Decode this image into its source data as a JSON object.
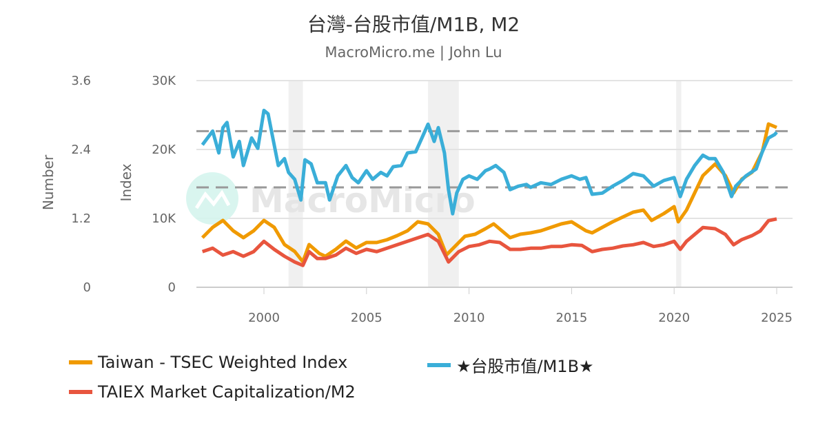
{
  "title": "台灣-台股市值/M1B, M2",
  "subtitle": "MacroMicro.me | John Lu",
  "watermark": "MacroMicro",
  "chart_data": {
    "type": "line",
    "title": "台灣-台股市值/M1B, M2",
    "left_axis_number": {
      "label": "Number",
      "ticks": [
        "0",
        "1.2",
        "2.4",
        "3.6"
      ],
      "range": [
        0,
        3.6
      ]
    },
    "left_axis_index": {
      "label": "Index",
      "ticks": [
        "0",
        "10K",
        "20K",
        "30K"
      ],
      "range": [
        0,
        30000
      ]
    },
    "x_axis": {
      "ticks": [
        "2000",
        "2005",
        "2010",
        "2015",
        "2020",
        "2025"
      ],
      "range": [
        1996.8,
        2025.5
      ]
    },
    "grid": true,
    "legend_position": "bottom",
    "reference_lines_number": [
      2.72,
      1.74
    ],
    "recession_bands": [
      [
        2001.2,
        2001.9
      ],
      [
        2008.0,
        2009.5
      ],
      [
        2020.1,
        2020.35
      ]
    ],
    "series": [
      {
        "name": "Taiwan - TSEC Weighted Index",
        "axis": "index",
        "color": "#f09a00",
        "x": [
          1997,
          1997.5,
          1998,
          1998.5,
          1999,
          1999.5,
          2000,
          2000.5,
          2001,
          2001.5,
          2001.9,
          2002.2,
          2002.7,
          2003,
          2003.5,
          2004,
          2004.5,
          2005,
          2005.5,
          2006,
          2006.5,
          2007,
          2007.5,
          2008,
          2008.5,
          2008.9,
          2009.3,
          2009.8,
          2010.3,
          2010.8,
          2011.2,
          2011.6,
          2012,
          2012.5,
          2013,
          2013.5,
          2014,
          2014.5,
          2015,
          2015.7,
          2016,
          2016.5,
          2017,
          2017.5,
          2018,
          2018.5,
          2018.9,
          2019.5,
          2020,
          2020.2,
          2020.6,
          2021,
          2021.4,
          2022,
          2022.5,
          2022.9,
          2023.3,
          2023.8,
          2024.3,
          2024.6,
          2025
        ],
        "y": [
          7200,
          8700,
          9700,
          8200,
          7200,
          8200,
          9700,
          8700,
          6200,
          5200,
          3700,
          6200,
          4900,
          4500,
          5500,
          6700,
          5700,
          6500,
          6500,
          6900,
          7500,
          8200,
          9500,
          9200,
          7700,
          4700,
          5900,
          7400,
          7700,
          8500,
          9200,
          8200,
          7200,
          7700,
          7900,
          8200,
          8700,
          9200,
          9500,
          8200,
          7900,
          8700,
          9500,
          10200,
          10900,
          11200,
          9700,
          10700,
          11700,
          9500,
          11200,
          13700,
          16200,
          17900,
          16200,
          13700,
          15700,
          16700,
          19700,
          23700,
          23200
        ]
      },
      {
        "name": "★台股市值/M1B★",
        "axis": "number",
        "color": "#3aaed8",
        "x": [
          1997,
          1997.5,
          1997.8,
          1998,
          1998.2,
          1998.5,
          1998.8,
          1999,
          1999.4,
          1999.7,
          2000,
          2000.2,
          2000.4,
          2000.7,
          2001,
          2001.2,
          2001.5,
          2001.8,
          2002,
          2002.3,
          2002.6,
          2003,
          2003.2,
          2003.6,
          2004,
          2004.3,
          2004.6,
          2005,
          2005.3,
          2005.7,
          2006,
          2006.3,
          2006.7,
          2007,
          2007.4,
          2007.7,
          2008,
          2008.3,
          2008.5,
          2008.8,
          2009,
          2009.2,
          2009.4,
          2009.7,
          2010,
          2010.4,
          2010.8,
          2011,
          2011.3,
          2011.7,
          2012,
          2012.4,
          2012.8,
          2013,
          2013.5,
          2014,
          2014.5,
          2015,
          2015.4,
          2015.7,
          2016,
          2016.5,
          2017,
          2017.5,
          2018,
          2018.5,
          2019,
          2019.5,
          2020,
          2020.3,
          2020.6,
          2021,
          2021.4,
          2021.7,
          2022,
          2022.4,
          2022.8,
          2023,
          2023.5,
          2024,
          2024.3,
          2024.6,
          2024.9,
          2025
        ],
        "y": [
          2.48,
          2.72,
          2.34,
          2.78,
          2.87,
          2.27,
          2.54,
          2.12,
          2.6,
          2.42,
          3.08,
          3.02,
          2.66,
          2.12,
          2.24,
          2.0,
          1.88,
          1.52,
          2.22,
          2.15,
          1.82,
          1.82,
          1.52,
          1.94,
          2.12,
          1.91,
          1.82,
          2.03,
          1.88,
          2.0,
          1.94,
          2.1,
          2.12,
          2.34,
          2.36,
          2.6,
          2.84,
          2.54,
          2.78,
          2.34,
          1.7,
          1.28,
          1.64,
          1.88,
          1.94,
          1.88,
          2.03,
          2.06,
          2.12,
          2.0,
          1.7,
          1.76,
          1.79,
          1.74,
          1.82,
          1.79,
          1.88,
          1.94,
          1.88,
          1.91,
          1.62,
          1.64,
          1.76,
          1.86,
          1.98,
          1.94,
          1.76,
          1.86,
          1.91,
          1.58,
          1.88,
          2.12,
          2.3,
          2.24,
          2.24,
          2.0,
          1.58,
          1.76,
          1.94,
          2.06,
          2.36,
          2.6,
          2.66,
          2.7
        ]
      },
      {
        "name": "TAIEX Market Capitalization/M2",
        "axis": "number",
        "color": "#e8553e",
        "x": [
          1997,
          1997.5,
          1998,
          1998.5,
          1999,
          1999.5,
          2000,
          2000.5,
          2001,
          2001.5,
          2001.9,
          2002.2,
          2002.6,
          2003,
          2003.5,
          2004,
          2004.5,
          2005,
          2005.5,
          2006,
          2006.5,
          2007,
          2007.5,
          2008,
          2008.5,
          2009,
          2009.5,
          2010,
          2010.5,
          2011,
          2011.5,
          2012,
          2012.5,
          2013,
          2013.5,
          2014,
          2014.5,
          2015,
          2015.5,
          2016,
          2016.5,
          2017,
          2017.5,
          2018,
          2018.5,
          2019,
          2019.5,
          2020,
          2020.3,
          2020.6,
          2021,
          2021.4,
          2022,
          2022.5,
          2022.9,
          2023.3,
          2023.8,
          2024.2,
          2024.6,
          2025
        ],
        "y": [
          0.62,
          0.68,
          0.56,
          0.62,
          0.54,
          0.62,
          0.8,
          0.66,
          0.54,
          0.44,
          0.38,
          0.62,
          0.5,
          0.5,
          0.56,
          0.68,
          0.59,
          0.66,
          0.62,
          0.68,
          0.74,
          0.8,
          0.86,
          0.92,
          0.8,
          0.44,
          0.62,
          0.71,
          0.74,
          0.8,
          0.78,
          0.66,
          0.66,
          0.68,
          0.68,
          0.71,
          0.71,
          0.74,
          0.73,
          0.62,
          0.66,
          0.68,
          0.72,
          0.74,
          0.78,
          0.71,
          0.74,
          0.8,
          0.66,
          0.8,
          0.92,
          1.04,
          1.02,
          0.92,
          0.74,
          0.83,
          0.9,
          0.98,
          1.16,
          1.19
        ]
      }
    ]
  }
}
